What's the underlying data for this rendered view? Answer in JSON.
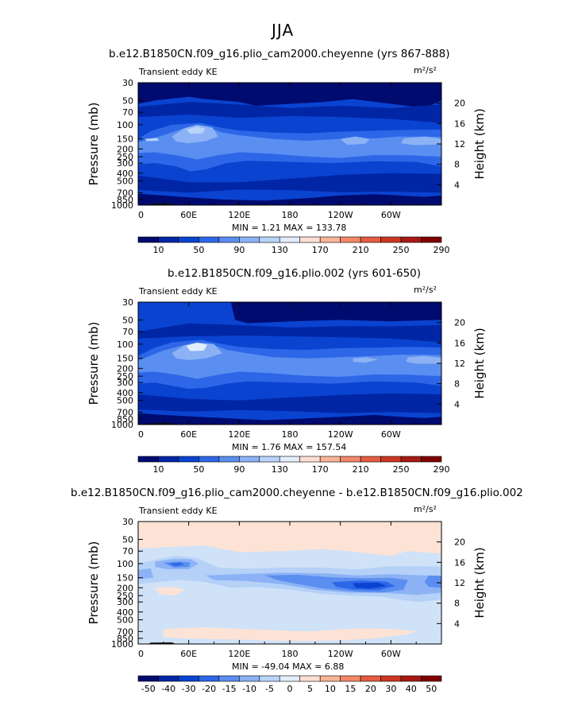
{
  "season": "JJA",
  "colors": {
    "background": "#ffffff",
    "frame": "#000000",
    "min": "#00007f",
    "max": "#800000"
  },
  "colorbar_palette": [
    "#000b70",
    "#0026a6",
    "#0a43d0",
    "#2d67e8",
    "#5a8ef0",
    "#8cb2f5",
    "#b9d3fa",
    "#e3eefc",
    "#fdded4",
    "#f9b497",
    "#f2876a",
    "#e55c41",
    "#cb3724",
    "#a71a13",
    "#800000"
  ],
  "chart_data": [
    {
      "type": "heatmap",
      "title": "b.e12.B1850CN.f09_g16.plio_cam2000.cheyenne (yrs 867-888)",
      "left_label": "Transient eddy KE",
      "units": "m²/s²",
      "ylabel": "Pressure (mb)",
      "ylabel_right": "Height (km)",
      "x_ticks": [
        "0",
        "60E",
        "120E",
        "180",
        "120W",
        "60W"
      ],
      "y_ticks": [
        "30",
        "50",
        "70",
        "100",
        "150",
        "200",
        "250",
        "300",
        "400",
        "500",
        "700",
        "850",
        "1000"
      ],
      "height_ticks": [
        "20",
        "16",
        "12",
        "8",
        "4"
      ],
      "stats": "MIN =    1.21   MAX = 133.78",
      "min": 1.21,
      "max": 133.78,
      "colorbar_labels": [
        "10",
        "50",
        "90",
        "130",
        "170",
        "210",
        "250",
        "290"
      ],
      "field_background": "#0a43d0",
      "layers": [
        {
          "level": 10,
          "color": "#000b70"
        },
        {
          "level": 30,
          "color": "#0026a6"
        },
        {
          "level": 50,
          "color": "#0a43d0"
        },
        {
          "level": 70,
          "color": "#2d67e8"
        },
        {
          "level": 90,
          "color": "#5a8ef0"
        },
        {
          "level": 110,
          "color": "#8cb2f5"
        },
        {
          "level": 130,
          "color": "#b9d3fa"
        }
      ]
    },
    {
      "type": "heatmap",
      "title": "b.e12.B1850CN.f09_g16.plio.002 (yrs 601-650)",
      "left_label": "Transient eddy KE",
      "units": "m²/s²",
      "ylabel": "Pressure (mb)",
      "ylabel_right": "Height (km)",
      "x_ticks": [
        "0",
        "60E",
        "120E",
        "180",
        "120W",
        "60W"
      ],
      "y_ticks": [
        "30",
        "50",
        "70",
        "100",
        "150",
        "200",
        "250",
        "300",
        "400",
        "500",
        "700",
        "850",
        "1000"
      ],
      "height_ticks": [
        "20",
        "16",
        "12",
        "8",
        "4"
      ],
      "stats": "MIN =    1.76   MAX = 157.54",
      "min": 1.76,
      "max": 157.54,
      "colorbar_labels": [
        "10",
        "50",
        "90",
        "130",
        "170",
        "210",
        "250",
        "290"
      ],
      "field_background": "#0a43d0",
      "layers": [
        {
          "level": 10,
          "color": "#000b70"
        },
        {
          "level": 30,
          "color": "#0026a6"
        },
        {
          "level": 50,
          "color": "#0a43d0"
        },
        {
          "level": 70,
          "color": "#2d67e8"
        },
        {
          "level": 90,
          "color": "#5a8ef0"
        },
        {
          "level": 110,
          "color": "#8cb2f5"
        },
        {
          "level": 150,
          "color": "#e3eefc"
        }
      ]
    },
    {
      "type": "heatmap",
      "title": "b.e12.B1850CN.f09_g16.plio_cam2000.cheyenne - b.e12.B1850CN.f09_g16.plio.002",
      "left_label": "Transient eddy KE",
      "units": "m²/s²",
      "ylabel": "Pressure (mb)",
      "ylabel_right": "Height (km)",
      "x_ticks": [
        "0",
        "60E",
        "120E",
        "180",
        "120W",
        "60W"
      ],
      "y_ticks": [
        "30",
        "50",
        "70",
        "100",
        "150",
        "200",
        "250",
        "300",
        "400",
        "500",
        "700",
        "850",
        "1000"
      ],
      "height_ticks": [
        "20",
        "16",
        "12",
        "8",
        "4"
      ],
      "stats": "MIN = -49.04   MAX =    6.88",
      "min": -49.04,
      "max": 6.88,
      "colorbar_labels": [
        "-50",
        "-40",
        "-30",
        "-20",
        "-15",
        "-10",
        "-5",
        "0",
        "5",
        "10",
        "15",
        "20",
        "30",
        "40",
        "50"
      ],
      "field_background": "#cfe2f8",
      "layers": [
        {
          "level": 0,
          "color": "#fde3d5"
        },
        {
          "level": -5,
          "color": "#b5d1f8"
        },
        {
          "level": -10,
          "color": "#8cb2f5"
        },
        {
          "level": -15,
          "color": "#5a8ef0"
        },
        {
          "level": -20,
          "color": "#2d67e8"
        },
        {
          "level": -30,
          "color": "#0a43d0"
        },
        {
          "level": -40,
          "color": "#0026a6"
        },
        {
          "level": -50,
          "color": "#000b70"
        }
      ]
    }
  ]
}
